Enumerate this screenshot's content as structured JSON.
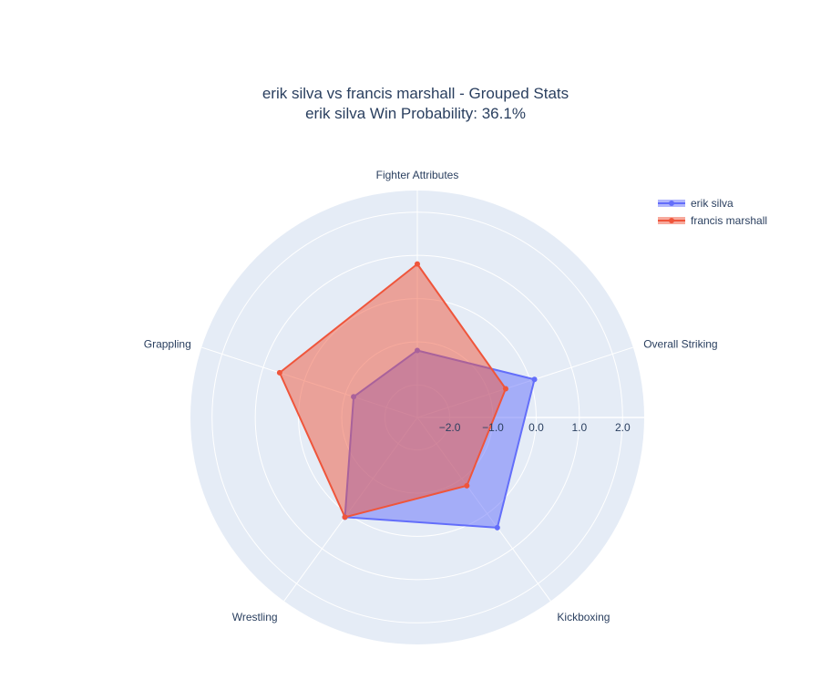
{
  "chart_data": {
    "type": "radar",
    "title_line1": "erik silva vs francis marshall - Grouped Stats",
    "title_line2": "erik silva Win Probability: 36.1%",
    "categories": [
      "Fighter Attributes",
      "Overall Striking",
      "Kickboxing",
      "Wrestling",
      "Grappling"
    ],
    "radial_range": [
      -2.75,
      2.5
    ],
    "radial_ticks": [
      -2.0,
      -1.0,
      0.0,
      1.0,
      2.0
    ],
    "radial_tick_labels": [
      "−2.0",
      "−1.0",
      "0.0",
      "1.0",
      "2.0"
    ],
    "grid": true,
    "legend_position": "top-right",
    "series": [
      {
        "name": "erik silva",
        "values": [
          -1.2,
          0.1,
          0.4,
          0.1,
          -1.2
        ],
        "color": "#636efa"
      },
      {
        "name": "francis marshall",
        "values": [
          0.8,
          -0.6,
          -0.8,
          0.1,
          0.6
        ],
        "color": "#ef553b"
      }
    ]
  }
}
